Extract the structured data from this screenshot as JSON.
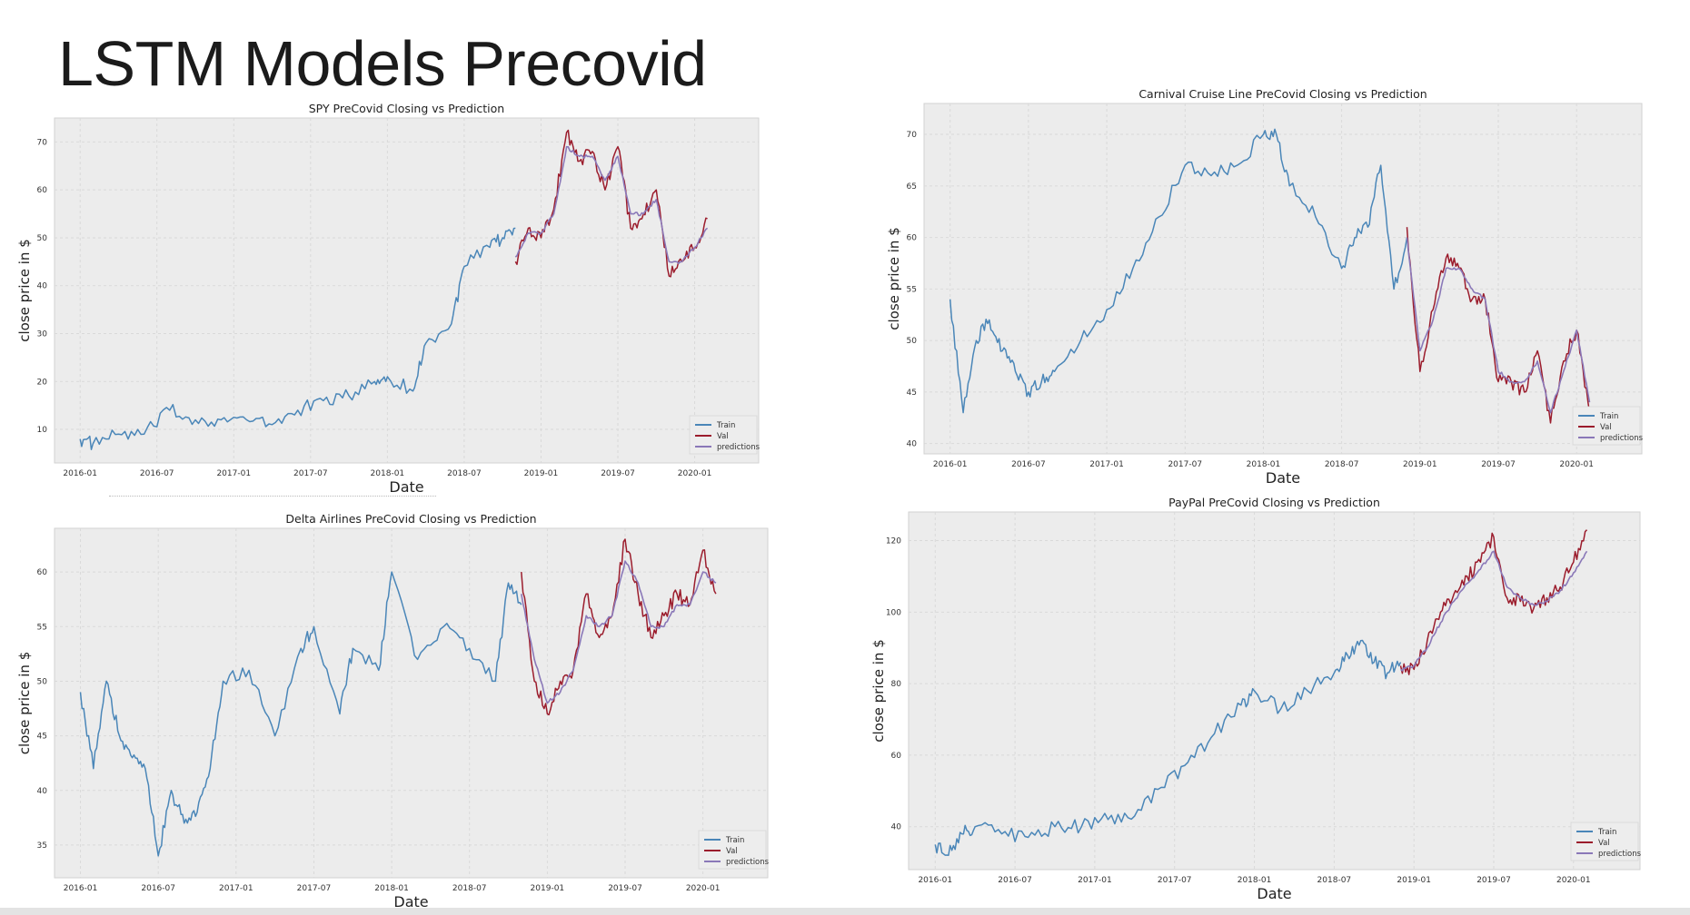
{
  "slide": {
    "title": "LSTM Models Precovid"
  },
  "colors": {
    "train": "#4a86b8",
    "val": "#9b1c2c",
    "predictions": "#8a78b8",
    "plot_bg": "#ececec",
    "grid": "#ffffff"
  },
  "chart_data": [
    {
      "type": "line",
      "title": "SPY PreCovid Closing vs Prediction",
      "xlabel": "Date",
      "ylabel": "close price in $",
      "xticks": [
        "2016-01",
        "2016-07",
        "2017-01",
        "2017-07",
        "2018-01",
        "2018-07",
        "2019-01",
        "2019-07",
        "2020-01"
      ],
      "yticks": [
        10,
        20,
        30,
        40,
        50,
        60,
        70
      ],
      "ylim": [
        3,
        75
      ],
      "xlim": [
        "2015-11",
        "2020-06"
      ],
      "grid": true,
      "legend": {
        "position": "bottom-right",
        "entries": [
          "Train",
          "Val",
          "predictions"
        ]
      },
      "series": [
        {
          "name": "Train",
          "x": [
            "2016-01",
            "2016-02",
            "2016-04",
            "2016-06",
            "2016-08",
            "2016-10",
            "2016-12",
            "2017-02",
            "2017-04",
            "2017-06",
            "2017-08",
            "2017-10",
            "2017-12",
            "2018-01",
            "2018-03",
            "2018-04",
            "2018-06",
            "2018-07",
            "2018-09",
            "2018-10",
            "2018-11"
          ],
          "values": [
            8,
            7,
            9,
            9,
            14,
            12,
            12,
            12,
            11,
            14,
            16,
            17,
            20,
            21,
            18,
            28,
            32,
            44,
            48,
            50,
            52
          ]
        },
        {
          "name": "Val",
          "x": [
            "2018-11",
            "2018-12",
            "2019-01",
            "2019-02",
            "2019-03",
            "2019-04",
            "2019-05",
            "2019-06",
            "2019-07",
            "2019-08",
            "2019-09",
            "2019-10",
            "2019-11",
            "2019-12",
            "2020-01",
            "2020-02"
          ],
          "values": [
            45,
            52,
            50,
            56,
            72,
            66,
            68,
            60,
            69,
            52,
            55,
            60,
            42,
            45,
            48,
            54
          ]
        },
        {
          "name": "predictions",
          "x": [
            "2018-11",
            "2018-12",
            "2019-01",
            "2019-02",
            "2019-03",
            "2019-04",
            "2019-05",
            "2019-06",
            "2019-07",
            "2019-08",
            "2019-09",
            "2019-10",
            "2019-11",
            "2019-12",
            "2020-01",
            "2020-02"
          ],
          "values": [
            46,
            51,
            51,
            55,
            69,
            67,
            67,
            62,
            67,
            55,
            55,
            58,
            45,
            45,
            48,
            52
          ]
        }
      ]
    },
    {
      "type": "line",
      "title": "Carnival Cruise Line PreCovid Closing vs Prediction",
      "xlabel": "Date",
      "ylabel": "close price in $",
      "xticks": [
        "2016-01",
        "2016-07",
        "2017-01",
        "2017-07",
        "2018-01",
        "2018-07",
        "2019-01",
        "2019-07",
        "2020-01"
      ],
      "yticks": [
        40,
        45,
        50,
        55,
        60,
        65,
        70
      ],
      "ylim": [
        39,
        73
      ],
      "xlim": [
        "2015-11",
        "2020-06"
      ],
      "grid": true,
      "legend": {
        "position": "bottom-right",
        "entries": [
          "Train",
          "Val",
          "predictions"
        ]
      },
      "series": [
        {
          "name": "Train",
          "x": [
            "2016-01",
            "2016-02",
            "2016-03",
            "2016-04",
            "2016-05",
            "2016-06",
            "2016-07",
            "2016-08",
            "2016-09",
            "2016-11",
            "2017-01",
            "2017-03",
            "2017-05",
            "2017-07",
            "2017-09",
            "2017-11",
            "2018-01",
            "2018-02",
            "2018-03",
            "2018-05",
            "2018-07",
            "2018-08",
            "2018-09",
            "2018-10",
            "2018-11",
            "2018-12"
          ],
          "values": [
            54,
            43,
            50,
            52,
            49,
            47,
            45,
            46,
            47,
            50,
            53,
            57,
            62,
            67,
            66,
            67,
            70,
            70,
            65,
            62,
            57,
            60,
            61,
            67,
            55,
            60
          ]
        },
        {
          "name": "Val",
          "x": [
            "2018-12",
            "2019-01",
            "2019-02",
            "2019-03",
            "2019-04",
            "2019-05",
            "2019-06",
            "2019-07",
            "2019-08",
            "2019-09",
            "2019-10",
            "2019-11",
            "2019-12",
            "2020-01",
            "2020-02"
          ],
          "values": [
            61,
            47,
            53,
            58,
            57,
            54,
            54,
            46,
            46,
            45,
            49,
            42,
            48,
            51,
            43
          ]
        },
        {
          "name": "predictions",
          "x": [
            "2018-12",
            "2019-01",
            "2019-02",
            "2019-03",
            "2019-04",
            "2019-05",
            "2019-06",
            "2019-07",
            "2019-08",
            "2019-09",
            "2019-10",
            "2019-11",
            "2019-12",
            "2020-01",
            "2020-02"
          ],
          "values": [
            60,
            49,
            52,
            57,
            57,
            55,
            54,
            47,
            46,
            46,
            48,
            43,
            47,
            51,
            44
          ]
        }
      ]
    },
    {
      "type": "line",
      "title": "Delta Airlines PreCovid Closing vs Prediction",
      "xlabel": "Date",
      "ylabel": "close price in $",
      "xticks": [
        "2016-01",
        "2016-07",
        "2017-01",
        "2017-07",
        "2018-01",
        "2018-07",
        "2019-01",
        "2019-07",
        "2020-01"
      ],
      "yticks": [
        35,
        40,
        45,
        50,
        55,
        60
      ],
      "ylim": [
        32,
        64
      ],
      "xlim": [
        "2015-11",
        "2020-06"
      ],
      "grid": true,
      "legend": {
        "position": "bottom-right",
        "entries": [
          "Train",
          "Val",
          "predictions"
        ]
      },
      "series": [
        {
          "name": "Train",
          "x": [
            "2016-01",
            "2016-02",
            "2016-03",
            "2016-04",
            "2016-05",
            "2016-06",
            "2016-07",
            "2016-08",
            "2016-09",
            "2016-10",
            "2016-11",
            "2016-12",
            "2017-02",
            "2017-04",
            "2017-06",
            "2017-07",
            "2017-09",
            "2017-10",
            "2017-12",
            "2018-01",
            "2018-03",
            "2018-05",
            "2018-07",
            "2018-09",
            "2018-10",
            "2018-11"
          ],
          "values": [
            49,
            42,
            50,
            45,
            43,
            42,
            34,
            40,
            37,
            38,
            42,
            50,
            51,
            45,
            53,
            55,
            47,
            53,
            51,
            60,
            52,
            55,
            53,
            50,
            59,
            57
          ]
        },
        {
          "name": "Val",
          "x": [
            "2018-11",
            "2018-12",
            "2019-01",
            "2019-02",
            "2019-03",
            "2019-04",
            "2019-05",
            "2019-06",
            "2019-07",
            "2019-08",
            "2019-09",
            "2019-10",
            "2019-11",
            "2019-12",
            "2020-01",
            "2020-02"
          ],
          "values": [
            60,
            50,
            47,
            50,
            51,
            58,
            54,
            56,
            63,
            58,
            54,
            56,
            58,
            57,
            62,
            58
          ]
        },
        {
          "name": "predictions",
          "x": [
            "2018-11",
            "2018-12",
            "2019-01",
            "2019-02",
            "2019-03",
            "2019-04",
            "2019-05",
            "2019-06",
            "2019-07",
            "2019-08",
            "2019-09",
            "2019-10",
            "2019-11",
            "2019-12",
            "2020-01",
            "2020-02"
          ],
          "values": [
            58,
            52,
            48,
            49,
            51,
            56,
            55,
            56,
            61,
            59,
            55,
            55,
            57,
            57,
            60,
            59
          ]
        }
      ]
    },
    {
      "type": "line",
      "title": "PayPal PreCovid Closing vs Prediction",
      "xlabel": "Date",
      "ylabel": "close price in $",
      "xticks": [
        "2016-01",
        "2016-07",
        "2017-01",
        "2017-07",
        "2018-01",
        "2018-07",
        "2019-01",
        "2019-07",
        "2020-01"
      ],
      "yticks": [
        40,
        60,
        80,
        100,
        120
      ],
      "ylim": [
        28,
        128
      ],
      "xlim": [
        "2015-11",
        "2020-06"
      ],
      "grid": true,
      "legend": {
        "position": "bottom-right",
        "entries": [
          "Train",
          "Val",
          "predictions"
        ]
      },
      "series": [
        {
          "name": "Train",
          "x": [
            "2016-01",
            "2016-02",
            "2016-03",
            "2016-04",
            "2016-06",
            "2016-08",
            "2016-10",
            "2016-12",
            "2017-02",
            "2017-04",
            "2017-06",
            "2017-08",
            "2017-10",
            "2017-12",
            "2018-01",
            "2018-03",
            "2018-05",
            "2018-07",
            "2018-08",
            "2018-09",
            "2018-10",
            "2018-11",
            "2018-12"
          ],
          "values": [
            35,
            32,
            38,
            40,
            38,
            37,
            40,
            40,
            42,
            43,
            51,
            58,
            66,
            74,
            78,
            73,
            78,
            83,
            88,
            92,
            86,
            83,
            86
          ]
        },
        {
          "name": "Val",
          "x": [
            "2018-12",
            "2019-01",
            "2019-02",
            "2019-03",
            "2019-04",
            "2019-05",
            "2019-06",
            "2019-07",
            "2019-08",
            "2019-09",
            "2019-10",
            "2019-11",
            "2019-12",
            "2020-01",
            "2020-02"
          ],
          "values": [
            85,
            84,
            92,
            100,
            105,
            110,
            114,
            121,
            104,
            103,
            101,
            104,
            107,
            114,
            123
          ]
        },
        {
          "name": "predictions",
          "x": [
            "2018-12",
            "2019-01",
            "2019-02",
            "2019-03",
            "2019-04",
            "2019-05",
            "2019-06",
            "2019-07",
            "2019-08",
            "2019-09",
            "2019-10",
            "2019-11",
            "2019-12",
            "2020-01",
            "2020-02"
          ],
          "values": [
            84,
            85,
            90,
            97,
            103,
            108,
            112,
            117,
            107,
            104,
            102,
            103,
            106,
            111,
            117
          ]
        }
      ]
    }
  ]
}
